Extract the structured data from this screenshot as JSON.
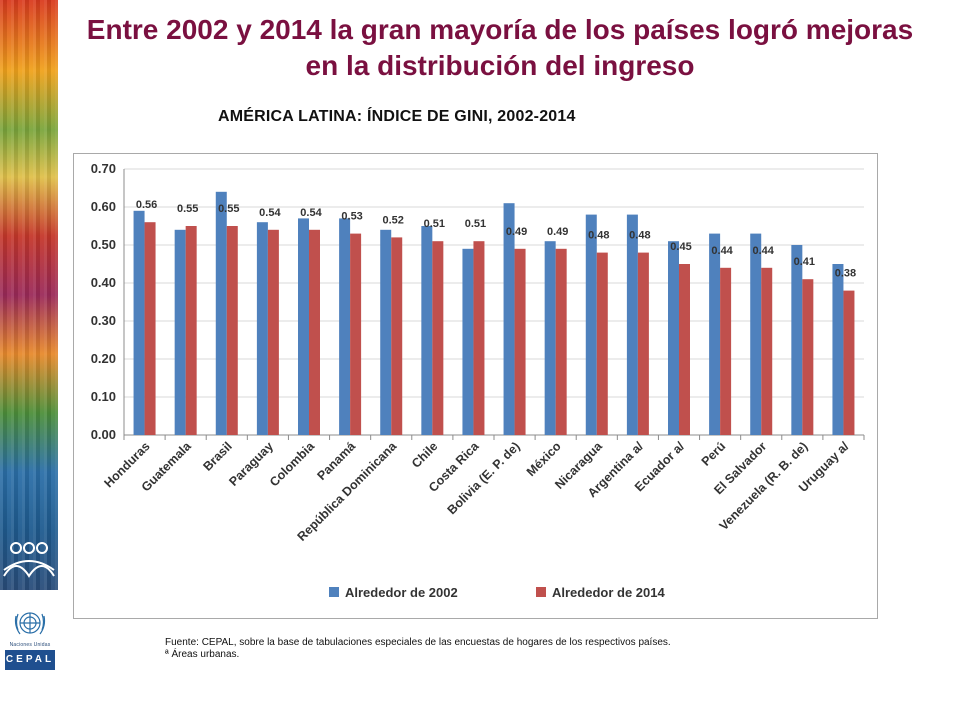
{
  "page": {
    "title": "Entre 2002 y 2014 la gran mayoría de los países logró mejoras en la distribución del ingreso"
  },
  "chart_title": "AMÉRICA LATINA: ÍNDICE DE GINI, 2002-2014",
  "chart_data": {
    "type": "bar",
    "title": "AMÉRICA LATINA: ÍNDICE DE GINI, 2002-2014",
    "xlabel": "",
    "ylabel": "",
    "ylim": [
      0,
      0.7
    ],
    "yticks": [
      "0.00",
      "0.10",
      "0.20",
      "0.30",
      "0.40",
      "0.50",
      "0.60",
      "0.70"
    ],
    "grid": true,
    "legend_position": "bottom",
    "categories": [
      "Honduras",
      "Guatemala",
      "Brasil",
      "Paraguay",
      "Colombia",
      "Panamá",
      "República Dominicana",
      "Chile",
      "Costa Rica",
      "Bolivia (E. P. de)",
      "México",
      "Nicaragua",
      "Argentina a/",
      "Ecuador a/",
      "Perú",
      "El Salvador",
      "Venezuela (R. B. de)",
      "Uruguay a/"
    ],
    "series": [
      {
        "name": "Alrededor de 2002",
        "color": "#4f81bd",
        "values": [
          0.59,
          0.54,
          0.64,
          0.56,
          0.57,
          0.57,
          0.54,
          0.55,
          0.49,
          0.61,
          0.51,
          0.58,
          0.58,
          0.51,
          0.53,
          0.53,
          0.5,
          0.45
        ]
      },
      {
        "name": "Alrededor de 2014",
        "color": "#c0504d",
        "values": [
          0.56,
          0.55,
          0.55,
          0.54,
          0.54,
          0.53,
          0.52,
          0.51,
          0.51,
          0.49,
          0.49,
          0.48,
          0.48,
          0.45,
          0.44,
          0.44,
          0.41,
          0.38
        ]
      }
    ],
    "data_labels": [
      "0.56",
      "0.55",
      "0.55",
      "0.54",
      "0.54",
      "0.53",
      "0.52",
      "0.51",
      "0.51",
      "0.49",
      "0.49",
      "0.48",
      "0.48",
      "0.45",
      "0.44",
      "0.44",
      "0.41",
      "0.38"
    ]
  },
  "source": {
    "line1": "Fuente: CEPAL, sobre la base de tabulaciones especiales de las encuestas de hogares de los respectivos países.",
    "line2": "ª Áreas urbanas."
  },
  "logos": {
    "un_caption": "Naciones Unidas",
    "cepal": "CEPAL"
  },
  "colors": {
    "title": "#7a1040",
    "series_2002": "#4f81bd",
    "series_2014": "#c0504d",
    "cepal_blue": "#1f4f8f"
  }
}
